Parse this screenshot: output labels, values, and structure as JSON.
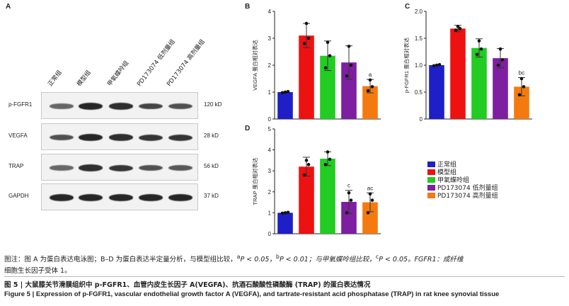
{
  "panels": {
    "a": "A",
    "b": "B",
    "c": "C",
    "d": "D"
  },
  "lanes": [
    "正常组",
    "模型组",
    "甲氧蝶呤组",
    "PD173074 低剂量组",
    "PD173074 高剂量组"
  ],
  "blots": [
    {
      "protein": "p-FGFR1",
      "kd": "120 kD",
      "intensity": [
        0.45,
        0.9,
        0.85,
        0.7,
        0.6
      ]
    },
    {
      "protein": "VEGFA",
      "kd": "28 kD",
      "intensity": [
        0.6,
        0.9,
        0.85,
        0.8,
        0.8
      ]
    },
    {
      "protein": "TRAP",
      "kd": "56 kD",
      "intensity": [
        0.45,
        0.85,
        0.8,
        0.6,
        0.55
      ]
    },
    {
      "protein": "GAPDH",
      "kd": "37 kD",
      "intensity": [
        0.9,
        0.9,
        0.9,
        0.9,
        0.9
      ]
    }
  ],
  "colors": [
    "#1f1fc8",
    "#ee1111",
    "#22cc22",
    "#7d1fa0",
    "#f47a10"
  ],
  "legend": [
    "正常组",
    "模型组",
    "甲氧蝶呤组",
    "PD173074 低剂量组",
    "PD173074 高剂量组"
  ],
  "chart_data": [
    {
      "panel": "B",
      "type": "bar",
      "ylabel": "VEGFA 蛋白相对表达",
      "ylim": [
        0,
        4
      ],
      "yticks": [
        "0",
        "1",
        "2",
        "3",
        "4"
      ],
      "values": [
        1.0,
        3.1,
        2.35,
        2.1,
        1.22
      ],
      "errors": [
        0.0,
        0.45,
        0.55,
        0.62,
        0.25
      ],
      "points": [
        [
          0.98,
          1.0,
          1.02
        ],
        [
          2.8,
          3.55,
          3.0
        ],
        [
          1.9,
          2.85,
          2.35
        ],
        [
          1.6,
          2.7,
          2.0
        ],
        [
          1.05,
          1.45,
          1.2
        ]
      ],
      "annotations": [
        "",
        "",
        "",
        "",
        "a"
      ]
    },
    {
      "panel": "C",
      "type": "bar",
      "ylabel": "p-FGFR1 蛋白相对表达",
      "ylim": [
        0,
        2.0
      ],
      "yticks": [
        "0",
        "0.5",
        "1.0",
        "1.5",
        "2.0"
      ],
      "values": [
        1.0,
        1.68,
        1.32,
        1.13,
        0.6
      ],
      "errors": [
        0.0,
        0.06,
        0.17,
        0.18,
        0.17
      ],
      "points": [
        [
          0.99,
          1.0,
          1.01
        ],
        [
          1.65,
          1.72,
          1.68
        ],
        [
          1.2,
          1.45,
          1.3
        ],
        [
          1.0,
          1.3,
          1.1
        ],
        [
          0.45,
          0.75,
          0.6
        ]
      ],
      "annotations": [
        "",
        "",
        "",
        "",
        "bc"
      ]
    },
    {
      "panel": "D",
      "type": "bar",
      "ylabel": "TRAP 蛋白相对表达",
      "ylim": [
        0,
        5
      ],
      "yticks": [
        "0",
        "1",
        "2",
        "3",
        "4",
        "5"
      ],
      "values": [
        1.0,
        3.2,
        3.58,
        1.52,
        1.5
      ],
      "errors": [
        0.0,
        0.45,
        0.33,
        0.55,
        0.45
      ],
      "points": [
        [
          0.98,
          1.0,
          1.02
        ],
        [
          2.8,
          3.5,
          3.3
        ],
        [
          3.3,
          3.9,
          3.55
        ],
        [
          1.0,
          1.95,
          1.6
        ],
        [
          1.0,
          1.9,
          1.6
        ]
      ],
      "annotations": [
        "",
        "",
        "",
        "c",
        "ac"
      ]
    }
  ],
  "caption": {
    "note_prefix": "图注：图 A 为蛋白表达电泳图；B–D 为蛋白表达半定量分析，与模型组比较，",
    "sup_a": "a",
    "p1": "P < 0.05，",
    "sup_b": "b",
    "p2": "P < 0.01；与甲氧蝶呤组比较，",
    "sup_c": "c",
    "p3": "P < 0.05。FGFR1：成纤维",
    "line2": "细胞生长因子受体 1。",
    "title_cn": "图 5 | 大鼠膝关节滑膜组织中 p-FGFR1、血管内皮生长因子 A(VEGFA)、抗酒石酸酸性磷酸酶 (TRAP) 的蛋白表达情况",
    "title_en": "Figure 5 | Expression of p-FGFR1, vascular endothelial growth factor A (VEGFA), and tartrate-resistant acid phosphatase (TRAP) in rat knee synovial tissue"
  }
}
